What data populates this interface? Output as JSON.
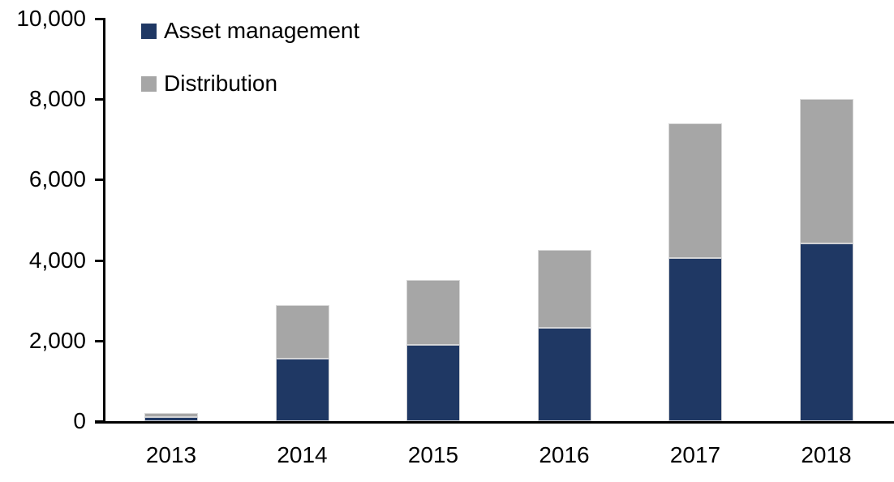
{
  "chart_data": {
    "type": "bar",
    "stacked": true,
    "title": "",
    "xlabel": "",
    "ylabel": "",
    "categories": [
      "2013",
      "2014",
      "2015",
      "2016",
      "2017",
      "2018"
    ],
    "series": [
      {
        "name": "Asset management",
        "color": "#1f3864",
        "values": [
          100,
          1560,
          1900,
          2320,
          4050,
          4420
        ]
      },
      {
        "name": "Distribution",
        "color": "#a6a6a6",
        "values": [
          100,
          1320,
          1600,
          1930,
          3350,
          3580
        ]
      }
    ],
    "totals": [
      200,
      2880,
      3500,
      4250,
      7400,
      8000
    ],
    "ylim": [
      0,
      10000
    ],
    "yticks": [
      0,
      2000,
      4000,
      6000,
      8000,
      10000
    ],
    "ytick_labels": [
      "0",
      "2,000",
      "4,000",
      "6,000",
      "8,000",
      "10,000"
    ],
    "grid": false,
    "legend_position": "top-left-inside",
    "axis_color": "#000000",
    "text_color": "#000000"
  }
}
